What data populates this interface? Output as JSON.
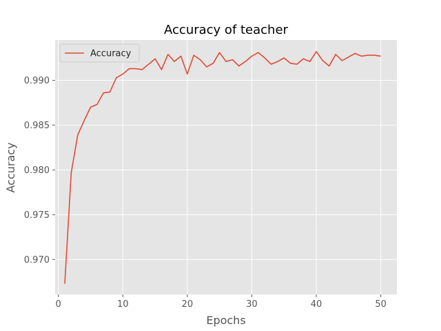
{
  "chart_data": {
    "type": "line",
    "title": "Accuracy of teacher",
    "xlabel": "Epochs",
    "ylabel": "Accuracy",
    "xlim": [
      -0.5,
      52.5
    ],
    "ylim": [
      0.9661,
      0.9945
    ],
    "xticks": [
      0,
      10,
      20,
      30,
      40,
      50
    ],
    "yticks": [
      0.97,
      0.975,
      0.98,
      0.985,
      0.99
    ],
    "ytick_labels": [
      "0.970",
      "0.975",
      "0.980",
      "0.985",
      "0.990"
    ],
    "grid": true,
    "legend_position": "top-left",
    "style": "ggplot",
    "colors": {
      "background": "#e5e5e5",
      "grid": "#ffffff",
      "line": "#e24a33"
    },
    "series": [
      {
        "name": "Accuracy",
        "x": [
          1,
          2,
          3,
          4,
          5,
          6,
          7,
          8,
          9,
          10,
          11,
          12,
          13,
          14,
          15,
          16,
          17,
          18,
          19,
          20,
          21,
          22,
          23,
          24,
          25,
          26,
          27,
          28,
          29,
          30,
          31,
          32,
          33,
          34,
          35,
          36,
          37,
          38,
          39,
          40,
          41,
          42,
          43,
          44,
          45,
          46,
          47,
          48,
          49,
          50
        ],
        "values": [
          0.9673,
          0.9797,
          0.9839,
          0.9855,
          0.987,
          0.9873,
          0.9886,
          0.9887,
          0.9903,
          0.9907,
          0.9913,
          0.9913,
          0.9912,
          0.9918,
          0.9924,
          0.9912,
          0.9929,
          0.9921,
          0.9927,
          0.9907,
          0.9928,
          0.9923,
          0.9915,
          0.9919,
          0.9931,
          0.9921,
          0.9923,
          0.9916,
          0.9921,
          0.9927,
          0.9931,
          0.9925,
          0.9918,
          0.9921,
          0.9925,
          0.9919,
          0.9918,
          0.9924,
          0.9921,
          0.9932,
          0.9922,
          0.9916,
          0.9929,
          0.9922,
          0.9926,
          0.993,
          0.9927,
          0.9928,
          0.9928,
          0.9927
        ]
      }
    ]
  }
}
